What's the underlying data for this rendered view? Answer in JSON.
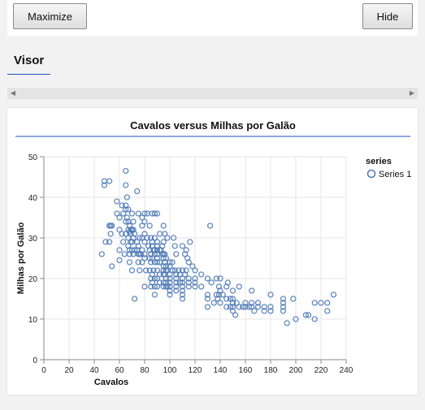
{
  "toolbar": {
    "maximize_label": "Maximize",
    "hide_label": "Hide"
  },
  "panel": {
    "title": "Visor"
  },
  "scrollbar": {
    "left_icon": "triangle-left",
    "right_icon": "triangle-right"
  },
  "colors": {
    "accent": "#1f4fb8",
    "marker": "#4a77b4"
  },
  "chart_data": {
    "type": "scatter",
    "title": "Cavalos versus Milhas por Galão",
    "xlabel": "Cavalos",
    "ylabel": "Milhas por Galão",
    "xlim": [
      0,
      240
    ],
    "ylim": [
      0,
      50
    ],
    "xticks": [
      0,
      20,
      40,
      60,
      80,
      100,
      120,
      140,
      160,
      180,
      200,
      220,
      240
    ],
    "yticks": [
      0,
      10,
      20,
      30,
      40,
      50
    ],
    "grid": true,
    "legend_position": "right",
    "series": [
      {
        "name": "Series 1",
        "points": [
          [
            46,
            26
          ],
          [
            48,
            44
          ],
          [
            48,
            43
          ],
          [
            49,
            29
          ],
          [
            52,
            44
          ],
          [
            52,
            29
          ],
          [
            52,
            33
          ],
          [
            53,
            33
          ],
          [
            53,
            31
          ],
          [
            54,
            33
          ],
          [
            54,
            23
          ],
          [
            58,
            36
          ],
          [
            58,
            39
          ],
          [
            60,
            35
          ],
          [
            60,
            27
          ],
          [
            60,
            24.5
          ],
          [
            60,
            32
          ],
          [
            62,
            38
          ],
          [
            62,
            31
          ],
          [
            63,
            29
          ],
          [
            63,
            36
          ],
          [
            64,
            26
          ],
          [
            65,
            46.5
          ],
          [
            65,
            43
          ],
          [
            65,
            38
          ],
          [
            65,
            37
          ],
          [
            65,
            34
          ],
          [
            65,
            31
          ],
          [
            66,
            40
          ],
          [
            66,
            35
          ],
          [
            67,
            32
          ],
          [
            67,
            28
          ],
          [
            67,
            30
          ],
          [
            67,
            34
          ],
          [
            67,
            37
          ],
          [
            68,
            26
          ],
          [
            68,
            31.5
          ],
          [
            68,
            33
          ],
          [
            68,
            27
          ],
          [
            68,
            24
          ],
          [
            69,
            31
          ],
          [
            69,
            29
          ],
          [
            69,
            32
          ],
          [
            70,
            36
          ],
          [
            70,
            32
          ],
          [
            70,
            29
          ],
          [
            70,
            27
          ],
          [
            70,
            22
          ],
          [
            71,
            30
          ],
          [
            71,
            32
          ],
          [
            71,
            34
          ],
          [
            71,
            26
          ],
          [
            72,
            15
          ],
          [
            72,
            27
          ],
          [
            72,
            31
          ],
          [
            74,
            41.5
          ],
          [
            74,
            29
          ],
          [
            74,
            27
          ],
          [
            75,
            36
          ],
          [
            75,
            28
          ],
          [
            75,
            26
          ],
          [
            75,
            24
          ],
          [
            76,
            30
          ],
          [
            76,
            26
          ],
          [
            76,
            22
          ],
          [
            77,
            26
          ],
          [
            78,
            27
          ],
          [
            78,
            24
          ],
          [
            78,
            30
          ],
          [
            78,
            33
          ],
          [
            78,
            35
          ],
          [
            80,
            34
          ],
          [
            80,
            36
          ],
          [
            80,
            31
          ],
          [
            80,
            29
          ],
          [
            80,
            26
          ],
          [
            80,
            25
          ],
          [
            80,
            18
          ],
          [
            81,
            22
          ],
          [
            82,
            36
          ],
          [
            82,
            30
          ],
          [
            83,
            28
          ],
          [
            84,
            27
          ],
          [
            84,
            25
          ],
          [
            84,
            22
          ],
          [
            84,
            33
          ],
          [
            85,
            24
          ],
          [
            85,
            30
          ],
          [
            85,
            20
          ],
          [
            85,
            18
          ],
          [
            85,
            26
          ],
          [
            86,
            36
          ],
          [
            86,
            29
          ],
          [
            86,
            28
          ],
          [
            86,
            25
          ],
          [
            86,
            21
          ],
          [
            86,
            19
          ],
          [
            87,
            27
          ],
          [
            87,
            22
          ],
          [
            88,
            36
          ],
          [
            88,
            30
          ],
          [
            88,
            27
          ],
          [
            88,
            26
          ],
          [
            88,
            24
          ],
          [
            88,
            20
          ],
          [
            88,
            18
          ],
          [
            88,
            16
          ],
          [
            90,
            36
          ],
          [
            90,
            29
          ],
          [
            90,
            28
          ],
          [
            90,
            27
          ],
          [
            90,
            26
          ],
          [
            90,
            25
          ],
          [
            90,
            24
          ],
          [
            90,
            22
          ],
          [
            90,
            20
          ],
          [
            90,
            18
          ],
          [
            92,
            31
          ],
          [
            92,
            27
          ],
          [
            92,
            24
          ],
          [
            92,
            21
          ],
          [
            92,
            19
          ],
          [
            93,
            27
          ],
          [
            94,
            28
          ],
          [
            94,
            26
          ],
          [
            95,
            33
          ],
          [
            95,
            29
          ],
          [
            95,
            26
          ],
          [
            95,
            25
          ],
          [
            95,
            23
          ],
          [
            95,
            22
          ],
          [
            95,
            21
          ],
          [
            95,
            19
          ],
          [
            95,
            18
          ],
          [
            96,
            31
          ],
          [
            96,
            26
          ],
          [
            96,
            24
          ],
          [
            96,
            21
          ],
          [
            97,
            25
          ],
          [
            97,
            23
          ],
          [
            97,
            22
          ],
          [
            97,
            20
          ],
          [
            97,
            19
          ],
          [
            97,
            18
          ],
          [
            98,
            30
          ],
          [
            98,
            22
          ],
          [
            98,
            18
          ],
          [
            100,
            24
          ],
          [
            100,
            23
          ],
          [
            100,
            21
          ],
          [
            100,
            20
          ],
          [
            100,
            19
          ],
          [
            100,
            18
          ],
          [
            100,
            17
          ],
          [
            100,
            16
          ],
          [
            102,
            24
          ],
          [
            102,
            22
          ],
          [
            103,
            30
          ],
          [
            104,
            28
          ],
          [
            104,
            22
          ],
          [
            105,
            26
          ],
          [
            105,
            21
          ],
          [
            105,
            20
          ],
          [
            105,
            19
          ],
          [
            105,
            18
          ],
          [
            105,
            17
          ],
          [
            107,
            22
          ],
          [
            108,
            19
          ],
          [
            108,
            21
          ],
          [
            110,
            28
          ],
          [
            110,
            22
          ],
          [
            110,
            20
          ],
          [
            110,
            19
          ],
          [
            110,
            18
          ],
          [
            110,
            17
          ],
          [
            110,
            16
          ],
          [
            110,
            15
          ],
          [
            112,
            26
          ],
          [
            112,
            21
          ],
          [
            113,
            27
          ],
          [
            113,
            22
          ],
          [
            114,
            25
          ],
          [
            115,
            24
          ],
          [
            115,
            20
          ],
          [
            115,
            19
          ],
          [
            115,
            18
          ],
          [
            116,
            29
          ],
          [
            118,
            23
          ],
          [
            120,
            22
          ],
          [
            120,
            20
          ],
          [
            120,
            19
          ],
          [
            120,
            18
          ],
          [
            125,
            21
          ],
          [
            125,
            18
          ],
          [
            130,
            20
          ],
          [
            130,
            16
          ],
          [
            130,
            15
          ],
          [
            130,
            13
          ],
          [
            132,
            33
          ],
          [
            133,
            19
          ],
          [
            135,
            14
          ],
          [
            137,
            20
          ],
          [
            137,
            16
          ],
          [
            138,
            15
          ],
          [
            139,
            18
          ],
          [
            139,
            16
          ],
          [
            140,
            20
          ],
          [
            140,
            17
          ],
          [
            140,
            14
          ],
          [
            142,
            16
          ],
          [
            145,
            18
          ],
          [
            145,
            15
          ],
          [
            145,
            13
          ],
          [
            146,
            19
          ],
          [
            148,
            15
          ],
          [
            148,
            13
          ],
          [
            150,
            17
          ],
          [
            150,
            15
          ],
          [
            150,
            14
          ],
          [
            150,
            13
          ],
          [
            150,
            12
          ],
          [
            152,
            11
          ],
          [
            153,
            14
          ],
          [
            155,
            18
          ],
          [
            155,
            13
          ],
          [
            158,
            13
          ],
          [
            160,
            14
          ],
          [
            160,
            13
          ],
          [
            163,
            13
          ],
          [
            165,
            17
          ],
          [
            165,
            14
          ],
          [
            165,
            13
          ],
          [
            167,
            12
          ],
          [
            170,
            13
          ],
          [
            170,
            14
          ],
          [
            175,
            13
          ],
          [
            175,
            12
          ],
          [
            180,
            16
          ],
          [
            180,
            13
          ],
          [
            180,
            12
          ],
          [
            190,
            15
          ],
          [
            190,
            14
          ],
          [
            190,
            13
          ],
          [
            190,
            12
          ],
          [
            193,
            9
          ],
          [
            198,
            15
          ],
          [
            200,
            10
          ],
          [
            208,
            11
          ],
          [
            210,
            11
          ],
          [
            215,
            10
          ],
          [
            215,
            14
          ],
          [
            220,
            14
          ],
          [
            225,
            14
          ],
          [
            225,
            12
          ],
          [
            230,
            16
          ]
        ]
      }
    ]
  }
}
